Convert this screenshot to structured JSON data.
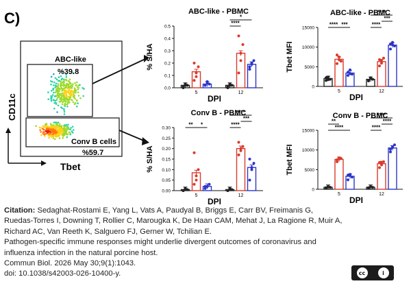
{
  "panel_label": "C)",
  "flow": {
    "x_axis_label": "Tbet",
    "y_axis_label": "CD11c",
    "gates": [
      {
        "name": "ABC-like",
        "percent": "%39.8"
      },
      {
        "name": "Conv B cells",
        "percent": "%59.7"
      }
    ]
  },
  "legend_arrow_note": "",
  "chart_data": [
    {
      "type": "bar",
      "title": "ABC-like - PBMC",
      "ylabel": "% S/HA",
      "xlabel": "DPI",
      "categories": [
        "5",
        "12"
      ],
      "ylim": [
        0,
        0.5
      ],
      "yticks": [
        "0.0",
        "0.1",
        "0.2",
        "0.3",
        "0.4",
        "0.5"
      ],
      "series": [
        {
          "color": "#222222",
          "values": [
            0.02,
            0.02
          ],
          "points": [
            [
              0.01,
              0.03,
              0.02,
              0.0,
              0.02
            ],
            [
              0.01,
              0.03,
              0.02,
              0.0,
              0.02
            ]
          ]
        },
        {
          "color": "#d93a2b",
          "values": [
            0.13,
            0.28
          ],
          "points": [
            [
              0.06,
              0.12,
              0.17,
              0.2,
              0.09
            ],
            [
              0.12,
              0.22,
              0.35,
              0.42,
              0.28
            ]
          ]
        },
        {
          "color": "#2b35c8",
          "values": [
            0.03,
            0.19
          ],
          "points": [
            [
              0.02,
              0.04,
              0.03,
              0.02,
              0.05
            ],
            [
              0.15,
              0.2,
              0.22,
              0.17,
              0.19
            ]
          ]
        }
      ],
      "significance": [
        {
          "label": "****",
          "group": 1,
          "from": 0,
          "to": 1,
          "level": 1
        },
        {
          "label": "*",
          "group": 1,
          "from": 0,
          "to": 2,
          "level": 2
        }
      ]
    },
    {
      "type": "bar",
      "title": "ABC-like - PBMC",
      "ylabel": "Tbet MFI",
      "xlabel": "DPI",
      "categories": [
        "5",
        "12"
      ],
      "ylim": [
        0,
        15000
      ],
      "yticks": [
        "0",
        "5000",
        "10000",
        "15000"
      ],
      "series": [
        {
          "color": "#222222",
          "values": [
            2000,
            1800
          ],
          "points": [
            [
              1500,
              2400,
              1800,
              2200,
              1700
            ],
            [
              1400,
              2200,
              1800,
              1600,
              2000
            ]
          ]
        },
        {
          "color": "#d93a2b",
          "values": [
            6900,
            6300
          ],
          "points": [
            [
              5800,
              7500,
              6400,
              8000,
              6800
            ],
            [
              5200,
              6500,
              7200,
              6800,
              5900
            ]
          ]
        },
        {
          "color": "#2b35c8",
          "values": [
            3400,
            10500
          ],
          "points": [
            [
              2800,
              4200,
              3100,
              3600,
              3300
            ],
            [
              9500,
              11200,
              10300,
              10800,
              10600
            ]
          ]
        }
      ],
      "significance": [
        {
          "label": "****",
          "group": 0,
          "from": 0,
          "to": 1,
          "level": 1
        },
        {
          "label": "***",
          "group": 0,
          "from": 1,
          "to": 2,
          "level": 1
        },
        {
          "label": "****",
          "group": 1,
          "from": 0,
          "to": 1,
          "level": 1
        },
        {
          "label": "***",
          "group": 1,
          "from": 1,
          "to": 2,
          "level": 2
        },
        {
          "label": "****",
          "group": 1,
          "from": 0,
          "to": 2,
          "level": 3
        }
      ]
    },
    {
      "type": "bar",
      "title": "Conv B - PBMC",
      "ylabel": "% S/HA",
      "xlabel": "DPI",
      "categories": [
        "5",
        "12"
      ],
      "ylim": [
        0,
        0.3
      ],
      "yticks": [
        "0.00",
        "0.05",
        "0.10",
        "0.15",
        "0.20",
        "0.25",
        "0.30"
      ],
      "series": [
        {
          "color": "#222222",
          "values": [
            0.005,
            0.005
          ],
          "points": [
            [
              0.0,
              0.01,
              0.005,
              0.0,
              0.01
            ],
            [
              0.0,
              0.01,
              0.005,
              0.0,
              0.01
            ]
          ]
        },
        {
          "color": "#d93a2b",
          "values": [
            0.085,
            0.2
          ],
          "points": [
            [
              0.03,
              0.05,
              0.1,
              0.18,
              0.07
            ],
            [
              0.17,
              0.19,
              0.21,
              0.23,
              0.2
            ]
          ]
        },
        {
          "color": "#2b35c8",
          "values": [
            0.02,
            0.11
          ],
          "points": [
            [
              0.01,
              0.02,
              0.03,
              0.02,
              0.02
            ],
            [
              0.05,
              0.1,
              0.13,
              0.15,
              0.11
            ]
          ]
        }
      ],
      "significance": [
        {
          "label": "**",
          "group": 0,
          "from": 0,
          "to": 1,
          "level": 1
        },
        {
          "label": "*",
          "group": 0,
          "from": 1,
          "to": 2,
          "level": 1
        },
        {
          "label": "****",
          "group": 1,
          "from": 0,
          "to": 1,
          "level": 1
        },
        {
          "label": "***",
          "group": 1,
          "from": 1,
          "to": 2,
          "level": 2
        },
        {
          "label": "****",
          "group": 1,
          "from": 0,
          "to": 2,
          "level": 3
        }
      ]
    },
    {
      "type": "bar",
      "title": "Conv B - PBMC",
      "ylabel": "Tbet MFI",
      "xlabel": "DPI",
      "categories": [
        "5",
        "12"
      ],
      "ylim": [
        0,
        15000
      ],
      "yticks": [
        "0",
        "5000",
        "10000",
        "15000"
      ],
      "series": [
        {
          "color": "#222222",
          "values": [
            500,
            500
          ],
          "points": [
            [
              300,
              700,
              500,
              400,
              600
            ],
            [
              300,
              700,
              500,
              400,
              600
            ]
          ]
        },
        {
          "color": "#d93a2b",
          "values": [
            7600,
            6500
          ],
          "points": [
            [
              7000,
              8000,
              7800,
              7500,
              7700
            ],
            [
              5500,
              6200,
              7000,
              6800,
              6900
            ]
          ]
        },
        {
          "color": "#2b35c8",
          "values": [
            3300,
            10500
          ],
          "points": [
            [
              2400,
              3800,
              3100,
              3600,
              3500
            ],
            [
              9500,
              10800,
              11300,
              10200,
              10600
            ]
          ]
        }
      ],
      "significance": [
        {
          "label": "**",
          "group": 0,
          "from": 0,
          "to": 1,
          "level": 2
        },
        {
          "label": "****",
          "group": 0,
          "from": 0,
          "to": 2,
          "level": 1
        },
        {
          "label": "****",
          "group": 1,
          "from": 0,
          "to": 1,
          "level": 1
        },
        {
          "label": "****",
          "group": 1,
          "from": 1,
          "to": 2,
          "level": 2
        },
        {
          "label": "****",
          "group": 1,
          "from": 0,
          "to": 2,
          "level": 3
        }
      ]
    }
  ],
  "caption": {
    "citation_label": "Citation:",
    "authors_line1": "Sedaghat-Rostami E, Yang L, Vats A, Paudyal B, Briggs E, Carr BV, Freimanis G,",
    "authors_line2": "Ruedas-Torres I, Downing T, Rollier C, Marougka K, De Haan CAM, Mehat J, La Ragione R, Muir A,",
    "authors_line3": "Richard AC, Van Reeth K, Salguero FJ, Gerner W, Tchilian E.",
    "title_line1": "Pathogen-specific immune responses might underlie divergent outcomes of coronavirus and",
    "title_line2": "influenza infection in the natural porcine host.",
    "journal": "Commun Biol. 2026 May 30;9(1):1043.",
    "doi": "doi: 10.1038/s42003-026-10400-y."
  },
  "license": {
    "icons": [
      "cc-icon",
      "by-icon"
    ],
    "text_cc": "cc",
    "text_by": "i"
  }
}
